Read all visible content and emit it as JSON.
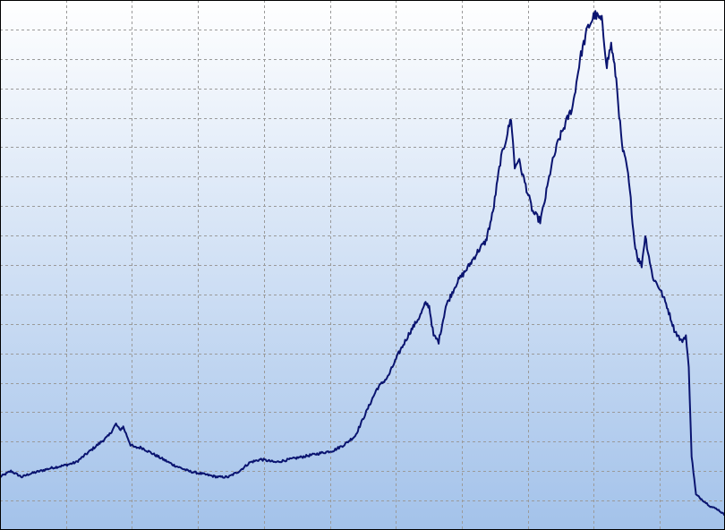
{
  "chart_data": {
    "type": "line",
    "title": "",
    "xlabel": "",
    "ylabel": "",
    "xlim": [
      0,
      100
    ],
    "ylim": [
      0,
      18
    ],
    "grid": true,
    "grid_style": "dashed",
    "x_gridlines": [
      0,
      9.1,
      18.2,
      27.3,
      36.4,
      45.5,
      54.6,
      63.7,
      72.8,
      81.9,
      91.0,
      100
    ],
    "y_gridlines": [
      0,
      1,
      2,
      3,
      4,
      5,
      6,
      7,
      8,
      9,
      10,
      11,
      12,
      13,
      14,
      15,
      16,
      17,
      18
    ],
    "colors": {
      "line": "#0a1470",
      "background_top": "#ffffff",
      "background_bottom": "#a3c2ea",
      "grid": "#9a9a9a"
    },
    "series": [
      {
        "x": [
          0,
          1.5,
          3,
          4,
          5.5,
          7,
          9,
          10.5,
          12,
          13.5,
          15,
          16,
          16.5,
          17,
          17.5,
          18,
          18.6,
          19.5,
          21,
          22.5,
          24,
          26,
          28,
          30,
          31.5,
          33,
          34.5,
          36,
          38,
          40,
          42,
          44,
          46,
          47.5,
          49,
          50.5,
          52,
          53.5,
          55,
          56.5,
          58,
          58.7,
          59.2,
          59.8,
          60.5,
          61.5,
          63,
          64.5,
          66,
          67,
          68,
          69,
          70,
          70.5,
          71,
          71.5,
          72.5,
          73.5,
          74.5,
          75,
          76,
          77,
          78,
          79,
          80,
          81,
          82,
          83,
          83.7,
          84.3,
          85,
          85.8,
          86.5,
          87,
          87.5,
          88,
          88.5,
          89,
          90,
          91,
          92,
          93,
          94,
          94.6,
          95,
          95.4,
          96,
          97,
          98,
          99,
          100
        ],
        "y": [
          1.8,
          2.0,
          1.8,
          1.9,
          2.0,
          2.1,
          2.2,
          2.3,
          2.6,
          2.9,
          3.2,
          3.6,
          3.4,
          3.5,
          3.2,
          2.9,
          2.8,
          2.8,
          2.6,
          2.4,
          2.2,
          2.0,
          1.9,
          1.8,
          1.8,
          2.0,
          2.3,
          2.4,
          2.3,
          2.4,
          2.5,
          2.6,
          2.7,
          2.9,
          3.2,
          4.0,
          4.8,
          5.2,
          6.0,
          6.7,
          7.3,
          7.7,
          7.6,
          6.6,
          6.4,
          7.6,
          8.4,
          8.9,
          9.5,
          9.8,
          10.8,
          12.5,
          13.5,
          14.0,
          12.3,
          12.6,
          11.7,
          10.8,
          10.5,
          11.0,
          12.3,
          13.2,
          13.8,
          14.4,
          16.0,
          17.0,
          17.5,
          17.3,
          15.8,
          16.5,
          15.3,
          13.0,
          12.3,
          11.2,
          9.8,
          9.2,
          9.0,
          10.0,
          8.6,
          8.2,
          7.6,
          6.8,
          6.4,
          6.6,
          5.5,
          2.5,
          1.2,
          1.0,
          0.8,
          0.7,
          0.5
        ]
      }
    ]
  }
}
